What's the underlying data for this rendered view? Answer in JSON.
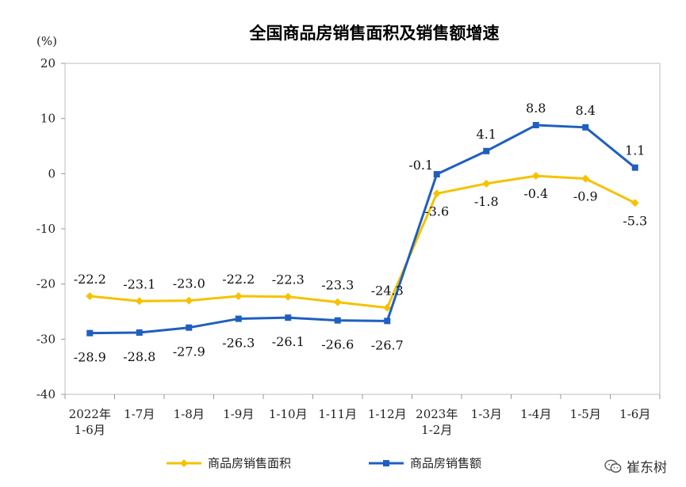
{
  "chart_data": {
    "type": "line",
    "title": "全国商品房销售面积及销售额增速",
    "ylabel": "(%)",
    "ylim": [
      -40,
      20
    ],
    "yticks": [
      "20",
      "10",
      "0",
      "-10",
      "-20",
      "-30",
      "-40"
    ],
    "categories": [
      [
        "2022年",
        "1-6月"
      ],
      [
        "1-7月"
      ],
      [
        "1-8月"
      ],
      [
        "1-9月"
      ],
      [
        "1-10月"
      ],
      [
        "1-11月"
      ],
      [
        "1-12月"
      ],
      [
        "2023年",
        "1-2月"
      ],
      [
        "1-3月"
      ],
      [
        "1-4月"
      ],
      [
        "1-5月"
      ],
      [
        "1-6月"
      ]
    ],
    "series": [
      {
        "name": "商品房销售面积",
        "color": "#F5C200",
        "marker": "diamond",
        "values": [
          -22.2,
          -23.1,
          -23.0,
          -22.2,
          -22.3,
          -23.3,
          -24.3,
          -3.6,
          -1.8,
          -0.4,
          -0.9,
          -5.3
        ],
        "labels": [
          "-22.2",
          "-23.1",
          "-23.0",
          "-22.2",
          "-22.3",
          "-23.3",
          "-24.3",
          "-3.6",
          "-1.8",
          "-0.4",
          "-0.9",
          "-5.3"
        ]
      },
      {
        "name": "商品房销售额",
        "color": "#1F5FBF",
        "marker": "square",
        "values": [
          -28.9,
          -28.8,
          -27.9,
          -26.3,
          -26.1,
          -26.6,
          -26.7,
          -0.1,
          4.1,
          8.8,
          8.4,
          1.1
        ],
        "labels": [
          "-28.9",
          "-28.8",
          "-27.9",
          "-26.3",
          "-26.1",
          "-26.6",
          "-26.7",
          "-0.1",
          "4.1",
          "8.8",
          "8.4",
          "1.1"
        ]
      }
    ],
    "grid": false,
    "legend": "bottom"
  },
  "watermark": {
    "text": "崔东树",
    "icon": "wechat-icon"
  }
}
